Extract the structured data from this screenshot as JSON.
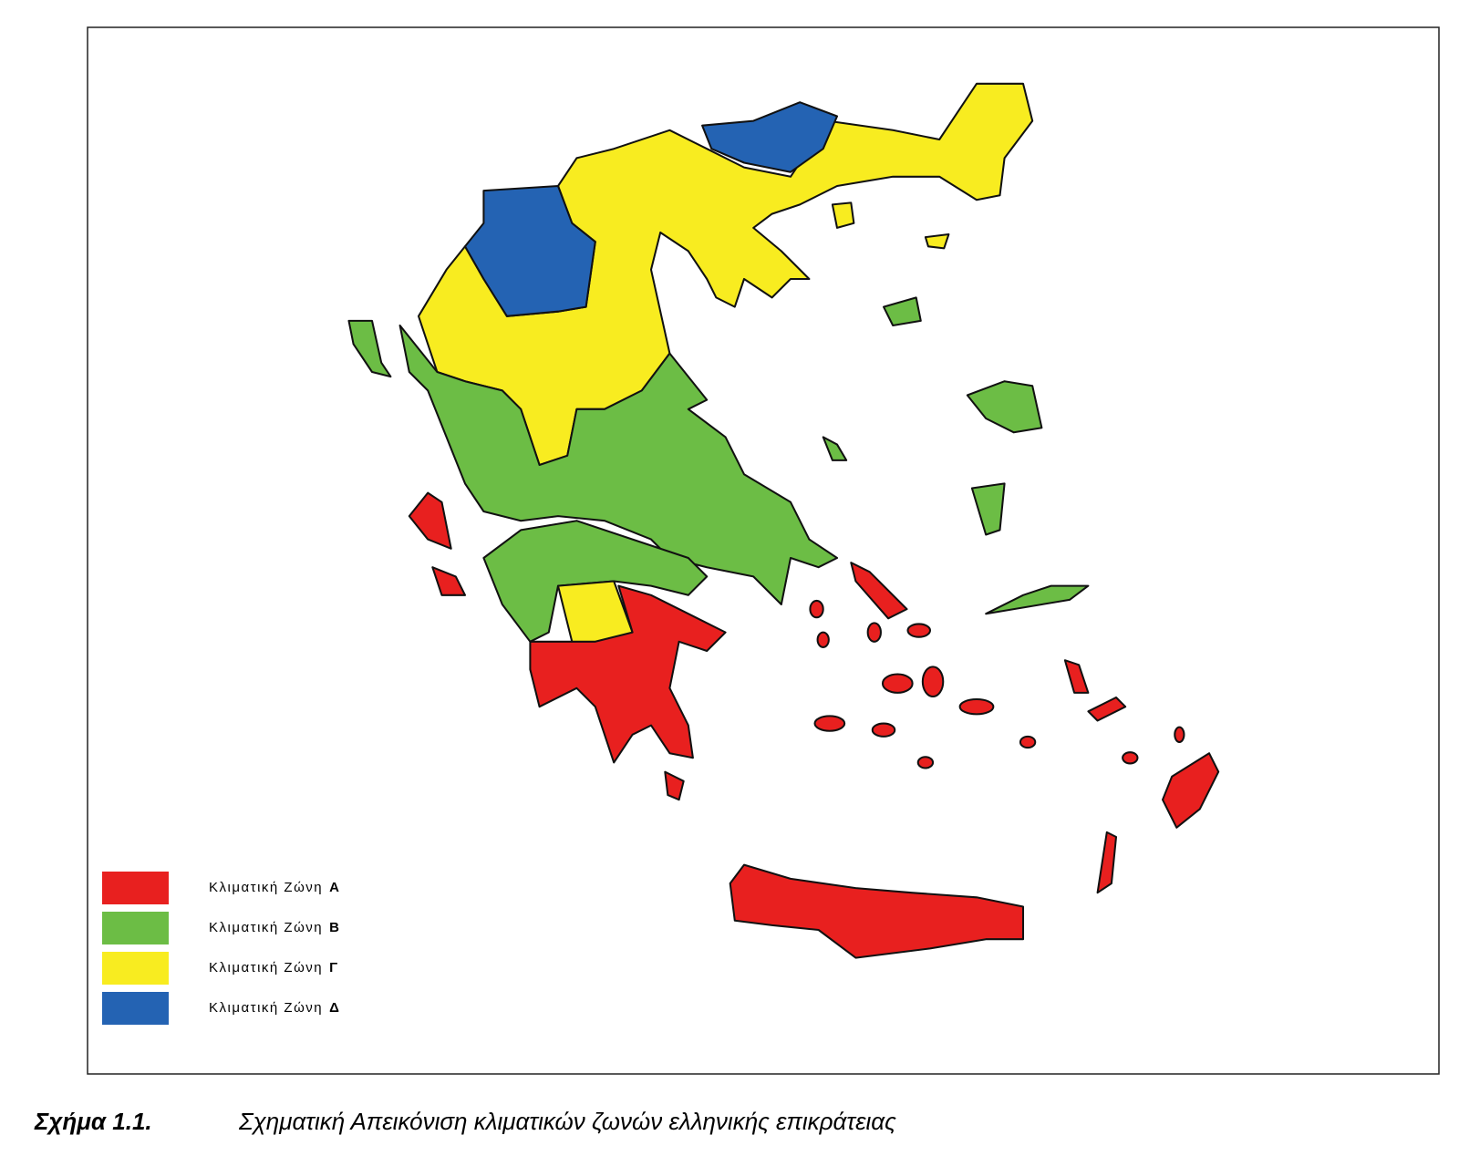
{
  "legend": {
    "items": [
      {
        "text": "Κλιματική Ζώνη",
        "zone": "Α",
        "color": "#e8201f"
      },
      {
        "text": "Κλιματική Ζώνη",
        "zone": "Β",
        "color": "#6cbd45"
      },
      {
        "text": "Κλιματική Ζώνη",
        "zone": "Γ",
        "color": "#f8ec20"
      },
      {
        "text": "Κλιματική Ζώνη",
        "zone": "Δ",
        "color": "#2463b3"
      }
    ]
  },
  "caption": {
    "label": "Σχήμα 1.1.",
    "text": "Σχηματική Απεικόνιση κλιματικών ζωνών ελληνικής επικράτειας"
  }
}
